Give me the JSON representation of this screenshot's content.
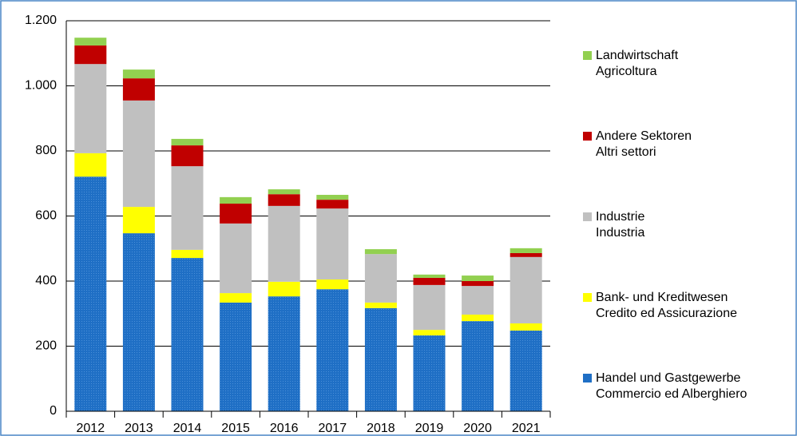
{
  "chart_data": {
    "type": "stacked_bar",
    "categories": [
      "2012",
      "2013",
      "2014",
      "2015",
      "2016",
      "2017",
      "2018",
      "2019",
      "2020",
      "2021"
    ],
    "series": [
      {
        "name": "Handel und Gastgewerbe\nCommercio ed Alberghiero",
        "color": "#1f6fc5",
        "values": [
          721,
          547,
          471,
          334,
          353,
          375,
          317,
          233,
          277,
          248
        ]
      },
      {
        "name": "Bank- und Kreditwesen\nCredito ed Assicurazione",
        "color": "#ffff00",
        "values": [
          72,
          81,
          25,
          29,
          45,
          30,
          17,
          17,
          20,
          22
        ]
      },
      {
        "name": "Industrie\nIndustria",
        "color": "#c0c0c0",
        "values": [
          274,
          327,
          257,
          214,
          233,
          218,
          149,
          138,
          88,
          204
        ]
      },
      {
        "name": "Andere Sektoren\nAltri settori",
        "color": "#c00000",
        "values": [
          57,
          68,
          64,
          61,
          36,
          27,
          0,
          22,
          15,
          12
        ]
      },
      {
        "name": "Landwirtschaft\nAgricoltura",
        "color": "#92d050",
        "values": [
          24,
          27,
          20,
          20,
          15,
          15,
          15,
          10,
          17,
          15
        ]
      }
    ],
    "ylim": [
      0,
      1200
    ],
    "yticks": [
      0,
      200,
      400,
      600,
      800,
      {
        "value": 1000,
        "label": "1.000"
      },
      {
        "value": 1200,
        "label": "1.200"
      }
    ],
    "grid": true,
    "legend": "right"
  }
}
